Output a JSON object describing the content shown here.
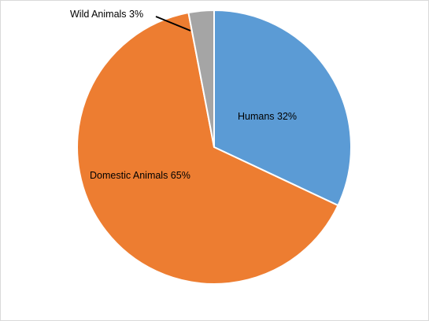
{
  "chart_data": {
    "type": "pie",
    "title": "",
    "start_angle_deg": 0,
    "direction": "clockwise",
    "legend": "none",
    "slices": [
      {
        "name": "Humans",
        "value": 32,
        "percent_label": "32%",
        "color": "#5b9bd5",
        "label": "Humans 32%"
      },
      {
        "name": "Domestic Animals",
        "value": 65,
        "percent_label": "65%",
        "color": "#ed7d31",
        "label": "Domestic Animals 65%"
      },
      {
        "name": "Wild Animals",
        "value": 3,
        "percent_label": "3%",
        "color": "#a5a5a5",
        "label": "Wild Animals 3%"
      }
    ]
  }
}
